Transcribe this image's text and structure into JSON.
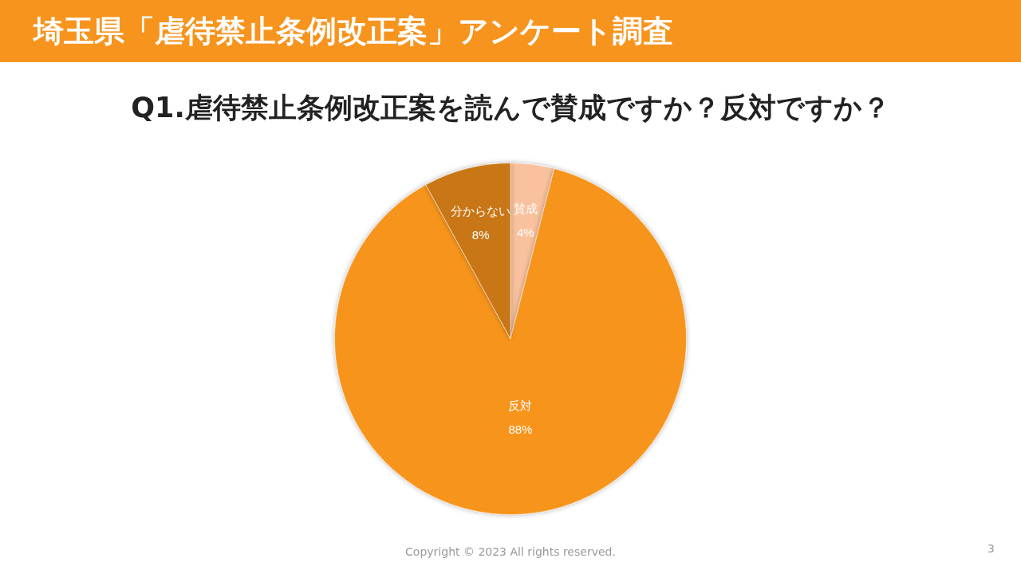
{
  "chart_data": {
    "type": "pie",
    "title": "埼玉県「虐待禁止条例改正案」アンケート調査",
    "subtitle": "Q1.虐待禁止条例改正案を読んで賛成ですか？反対ですか？",
    "categories": [
      "賛成",
      "反対",
      "分からない"
    ],
    "values": [
      4,
      88,
      8
    ],
    "value_labels": [
      "4%",
      "88%",
      "8%"
    ],
    "colors": [
      "#f9c19d",
      "#f7941d",
      "#c97716"
    ],
    "annotations": [
      "Copyright © 2023 All rights reserved.",
      "3"
    ]
  }
}
